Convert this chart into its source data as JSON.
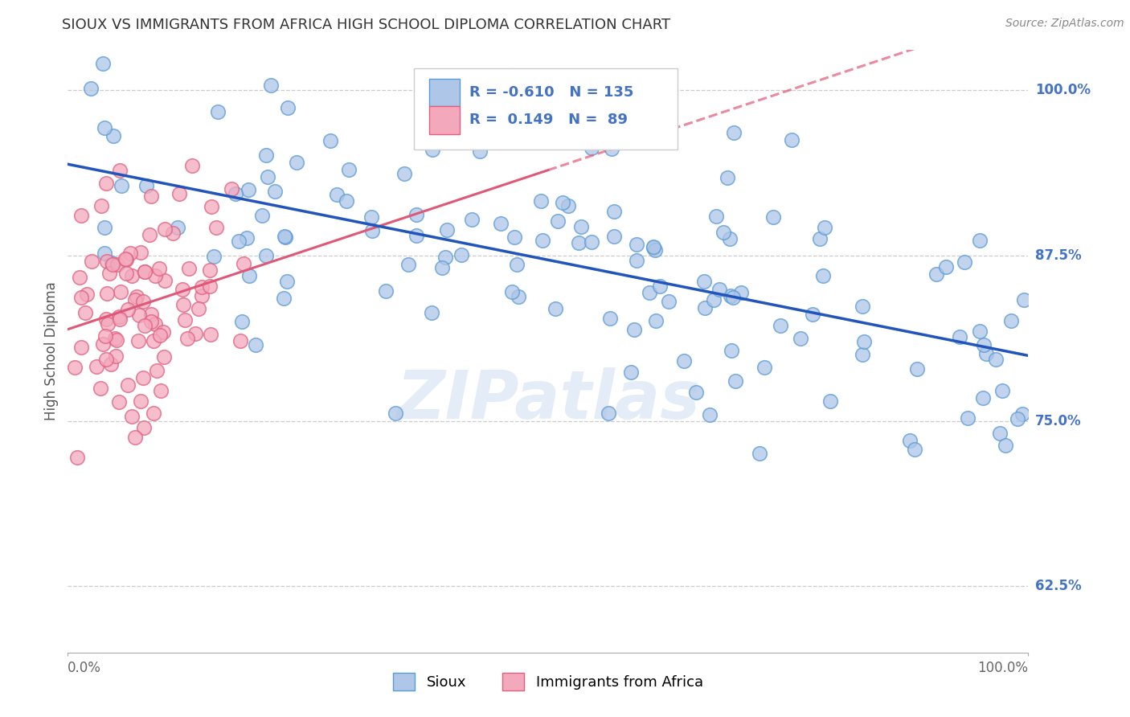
{
  "title": "SIOUX VS IMMIGRANTS FROM AFRICA HIGH SCHOOL DIPLOMA CORRELATION CHART",
  "source": "Source: ZipAtlas.com",
  "ylabel": "High School Diploma",
  "yticks": [
    0.625,
    0.75,
    0.875,
    1.0
  ],
  "ytick_labels": [
    "62.5%",
    "75.0%",
    "87.5%",
    "100.0%"
  ],
  "xlim": [
    0.0,
    1.0
  ],
  "ylim": [
    0.575,
    1.03
  ],
  "sioux_color": "#aec6e8",
  "sioux_edge": "#5b9bd5",
  "africa_color": "#f4a8bc",
  "africa_edge": "#e06080",
  "blue_line_color": "#2255bb",
  "pink_line_color": "#e05878",
  "legend_R1": "-0.610",
  "legend_N1": "135",
  "legend_R2": "0.149",
  "legend_N2": "89",
  "watermark": "ZIPatlas",
  "background_color": "#ffffff",
  "title_color": "#333333",
  "source_color": "#888888",
  "tick_label_color": "#4472c4",
  "ylabel_color": "#555555"
}
